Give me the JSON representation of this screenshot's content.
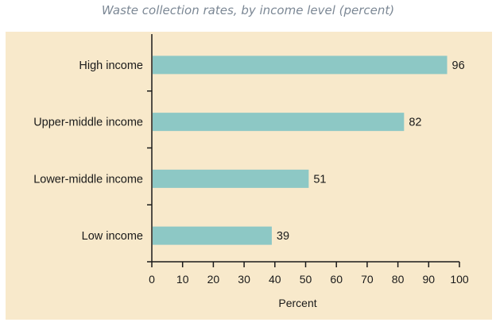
{
  "title": "Waste collection rates, by income level (percent)",
  "chart_data": {
    "type": "bar",
    "orientation": "horizontal",
    "title": "Waste collection rates, by income level (percent)",
    "categories": [
      "High income",
      "Upper-middle income",
      "Lower-middle income",
      "Low income"
    ],
    "values": [
      96,
      82,
      51,
      39
    ],
    "xlabel": "Percent",
    "ylabel": "",
    "xlim": [
      0,
      100
    ],
    "xticks": [
      0,
      10,
      20,
      30,
      40,
      50,
      60,
      70,
      80,
      90,
      100
    ],
    "grid": false,
    "legend": "none",
    "bar_color": "#8dc8c5",
    "background_color": "#f8e9cb"
  }
}
